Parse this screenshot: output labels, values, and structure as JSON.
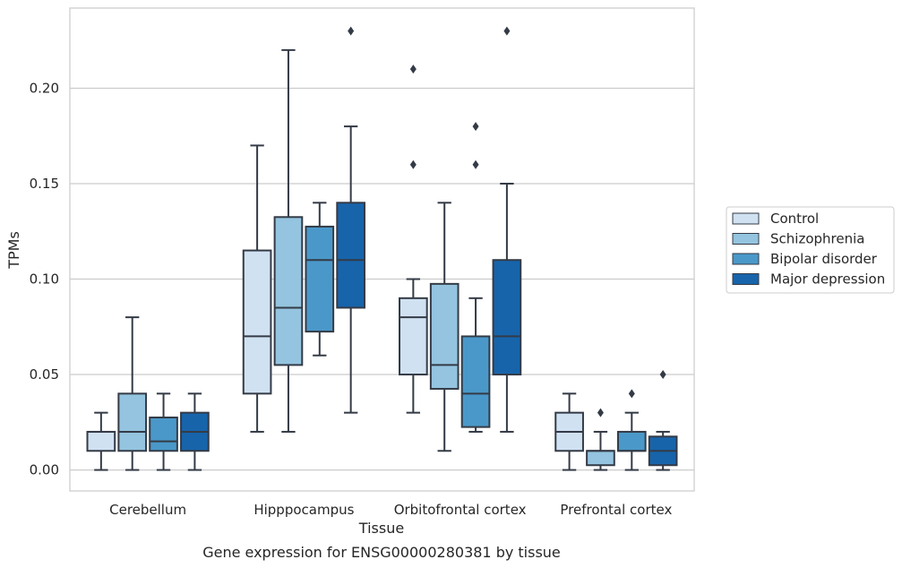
{
  "chart_data": {
    "type": "boxplot",
    "title": "Gene expression for ENSG00000280381 by tissue",
    "xlabel": "Tissue",
    "ylabel": "TPMs",
    "ylim": [
      -0.011,
      0.242
    ],
    "yticks": [
      0.0,
      0.05,
      0.1,
      0.15,
      0.2
    ],
    "ytick_labels": [
      "0.00",
      "0.05",
      "0.10",
      "0.15",
      "0.20"
    ],
    "grid": "horizontal",
    "legend_position": "right",
    "categories": [
      "Cerebellum",
      "Hipppocampus",
      "Orbitofrontal cortex",
      "Prefrontal cortex"
    ],
    "series": [
      {
        "name": "Control",
        "color": "#d0e1f2",
        "boxes": [
          {
            "whislo": 0.0,
            "q1": 0.01,
            "med": 0.02,
            "q3": 0.02,
            "whishi": 0.03,
            "fliers": []
          },
          {
            "whislo": 0.02,
            "q1": 0.04,
            "med": 0.07,
            "q3": 0.115,
            "whishi": 0.17,
            "fliers": []
          },
          {
            "whislo": 0.03,
            "q1": 0.05,
            "med": 0.08,
            "q3": 0.09,
            "whishi": 0.1,
            "fliers": [
              0.16,
              0.21
            ]
          },
          {
            "whislo": 0.0,
            "q1": 0.01,
            "med": 0.02,
            "q3": 0.03,
            "whishi": 0.04,
            "fliers": []
          }
        ]
      },
      {
        "name": "Schizophrenia",
        "color": "#94c4df",
        "boxes": [
          {
            "whislo": 0.0,
            "q1": 0.01,
            "med": 0.02,
            "q3": 0.04,
            "whishi": 0.08,
            "fliers": []
          },
          {
            "whislo": 0.02,
            "q1": 0.055,
            "med": 0.085,
            "q3": 0.1325,
            "whishi": 0.22,
            "fliers": []
          },
          {
            "whislo": 0.01,
            "q1": 0.0425,
            "med": 0.055,
            "q3": 0.0975,
            "whishi": 0.14,
            "fliers": []
          },
          {
            "whislo": 0.0,
            "q1": 0.0025,
            "med": 0.01,
            "q3": 0.01,
            "whishi": 0.02,
            "fliers": [
              0.03
            ]
          }
        ]
      },
      {
        "name": "Bipolar disorder",
        "color": "#4a98c9",
        "boxes": [
          {
            "whislo": 0.0,
            "q1": 0.01,
            "med": 0.015,
            "q3": 0.0275,
            "whishi": 0.04,
            "fliers": []
          },
          {
            "whislo": 0.06,
            "q1": 0.0725,
            "med": 0.11,
            "q3": 0.1275,
            "whishi": 0.14,
            "fliers": []
          },
          {
            "whislo": 0.02,
            "q1": 0.0225,
            "med": 0.04,
            "q3": 0.07,
            "whishi": 0.09,
            "fliers": [
              0.16,
              0.18
            ]
          },
          {
            "whislo": 0.0,
            "q1": 0.01,
            "med": 0.01,
            "q3": 0.02,
            "whishi": 0.03,
            "fliers": [
              0.04
            ]
          }
        ]
      },
      {
        "name": "Major depression",
        "color": "#1764ab",
        "boxes": [
          {
            "whislo": 0.0,
            "q1": 0.01,
            "med": 0.02,
            "q3": 0.03,
            "whishi": 0.04,
            "fliers": []
          },
          {
            "whislo": 0.03,
            "q1": 0.085,
            "med": 0.11,
            "q3": 0.14,
            "whishi": 0.18,
            "fliers": [
              0.23
            ]
          },
          {
            "whislo": 0.02,
            "q1": 0.05,
            "med": 0.07,
            "q3": 0.11,
            "whishi": 0.15,
            "fliers": [
              0.23
            ]
          },
          {
            "whislo": 0.0,
            "q1": 0.0025,
            "med": 0.01,
            "q3": 0.0175,
            "whishi": 0.02,
            "fliers": [
              0.05
            ]
          }
        ]
      }
    ]
  },
  "colors": {
    "grid": "#cccccc",
    "frame": "#cccccc",
    "line": "#343b46",
    "text": "#262626"
  }
}
